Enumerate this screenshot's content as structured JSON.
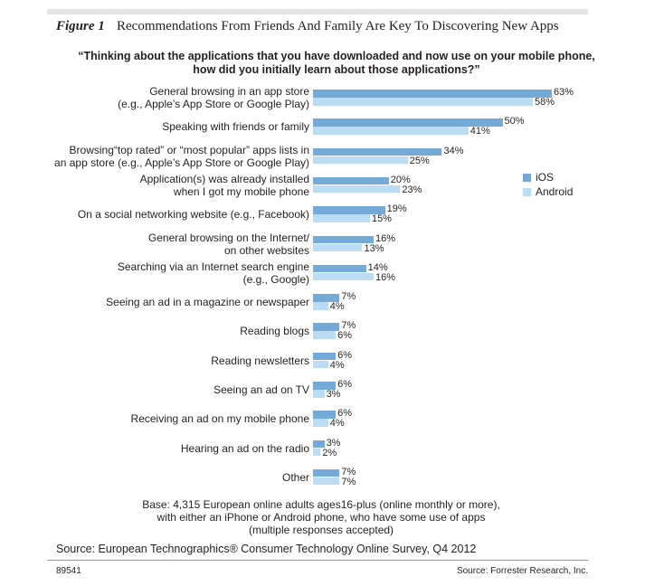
{
  "chart_data": {
    "type": "bar",
    "orientation": "horizontal",
    "figure_label": "Figure 1",
    "title": "Recommendations From Friends And Family Are Key To Discovering New Apps",
    "subtitle": "“Thinking about the applications that you have downloaded and now use on your mobile phone,\nhow did you initially learn about those applications?”",
    "categories": [
      "General browsing in an app store\n(e.g., Apple’s App Store or Google Play)",
      "Speaking with friends or family",
      "Browsing“top rated” or “most popular” apps lists in\nan app store (e.g., Apple’s App Store or Google Play)",
      "Application(s) was already installed\nwhen I got my mobile phone",
      "On a social networking website (e.g., Facebook)",
      "General browsing on the Internet/\non other websites",
      "Searching via an Internet search engine\n(e.g., Google)",
      "Seeing an ad in a magazine or newspaper",
      "Reading blogs",
      "Reading newsletters",
      "Seeing an ad on TV",
      "Receiving an ad on my mobile phone",
      "Hearing an ad on the radio",
      "Other"
    ],
    "series": [
      {
        "name": "iOS",
        "color": "#74a9d8",
        "values": [
          63,
          50,
          34,
          20,
          19,
          16,
          14,
          7,
          7,
          6,
          6,
          6,
          3,
          7
        ],
        "value_labels": [
          "63%",
          "50%",
          "34%",
          "20%",
          "19%",
          "16%",
          "14%",
          "7%",
          "7%",
          "6%",
          "6%",
          "6%",
          "3%",
          "7%"
        ]
      },
      {
        "name": "Android",
        "color": "#bcdcf3",
        "values": [
          58,
          41,
          25,
          23,
          15,
          13,
          16,
          4,
          6,
          4,
          3,
          4,
          2,
          7
        ],
        "value_labels": [
          "58%",
          "41%",
          "25%",
          "23%",
          "15%",
          "13%",
          "16%",
          "4%",
          "6%",
          "4%",
          "3%",
          "4%",
          "2%",
          "7%"
        ]
      }
    ],
    "legend_position": "right",
    "note": "Base: 4,315 European online adults ages16-plus (online monthly or more),\nwith either an iPhone or Android phone, who have some use of apps\n(multiple responses accepted)",
    "source": "Source: European Technographics® Consumer Technology Online Survey, Q4 2012",
    "figure_id": "89541",
    "credit": "Source: Forrester Research, Inc."
  }
}
